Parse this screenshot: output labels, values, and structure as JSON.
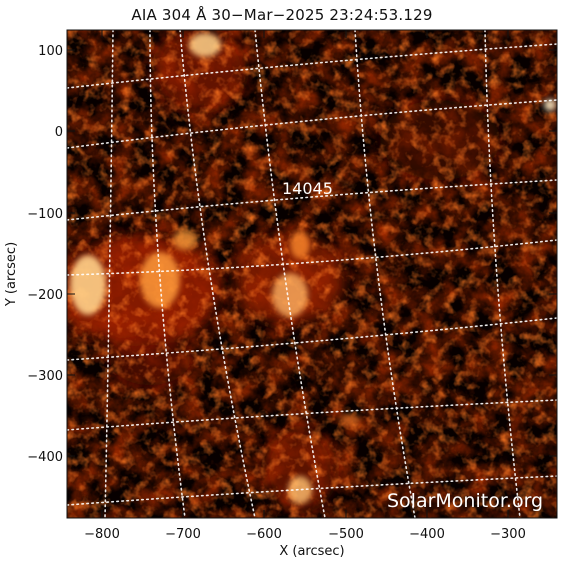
{
  "title": "AIA 304 Å 30−Mar−2025  23:24:53.129",
  "x_axis": {
    "label": "X (arcsec)",
    "ticks": [
      "−800",
      "−700",
      "−600",
      "−500",
      "−400",
      "−300"
    ],
    "range": [
      -845,
      -245
    ]
  },
  "y_axis": {
    "label": "Y (arcsec)",
    "ticks": [
      "100",
      "0",
      "−100",
      "−200",
      "−300",
      "−400"
    ],
    "range": [
      -480,
      125
    ]
  },
  "region_label": "14045",
  "watermark": "SolarMonitor.org",
  "colors": {
    "background": "#000000",
    "emission_dark": "#3a0500",
    "emission_mid": "#b52a00",
    "emission_bright": "#ff8a2a",
    "emission_peak": "#fff0c8",
    "grid": "#ffffff"
  }
}
